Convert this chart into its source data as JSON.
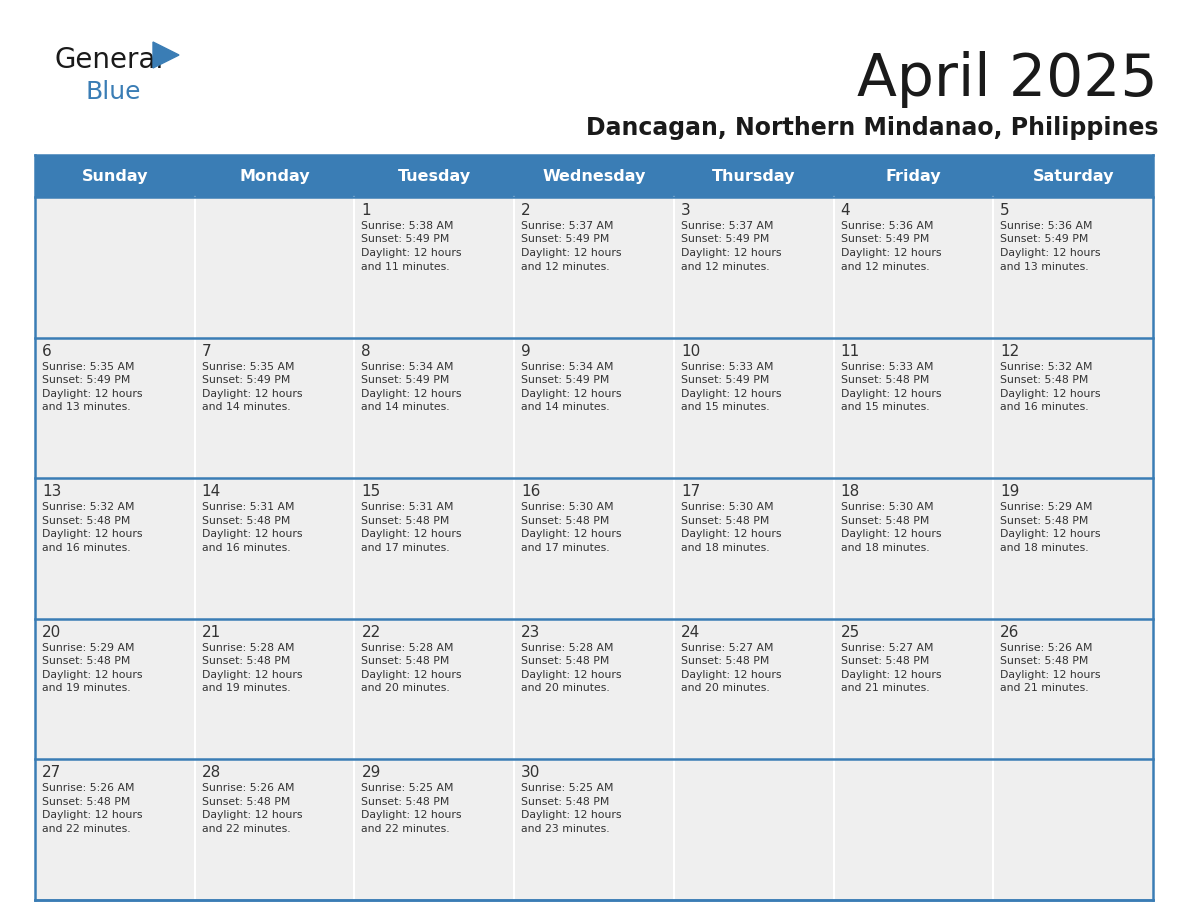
{
  "title": "April 2025",
  "subtitle": "Dancagan, Northern Mindanao, Philippines",
  "days_of_week": [
    "Sunday",
    "Monday",
    "Tuesday",
    "Wednesday",
    "Thursday",
    "Friday",
    "Saturday"
  ],
  "header_bg": "#3A7DB5",
  "header_text": "#FFFFFF",
  "cell_bg_light": "#EFEFEF",
  "cell_bg_white": "#FFFFFF",
  "text_color": "#333333",
  "line_color": "#3A7DB5",
  "logo_color": "#3A7DB5",
  "calendar": [
    [
      {
        "day": "",
        "sunrise": "",
        "sunset": "",
        "daylight": ""
      },
      {
        "day": "",
        "sunrise": "",
        "sunset": "",
        "daylight": ""
      },
      {
        "day": "1",
        "sunrise": "5:38 AM",
        "sunset": "5:49 PM",
        "daylight": "12 hours and 11 minutes."
      },
      {
        "day": "2",
        "sunrise": "5:37 AM",
        "sunset": "5:49 PM",
        "daylight": "12 hours and 12 minutes."
      },
      {
        "day": "3",
        "sunrise": "5:37 AM",
        "sunset": "5:49 PM",
        "daylight": "12 hours and 12 minutes."
      },
      {
        "day": "4",
        "sunrise": "5:36 AM",
        "sunset": "5:49 PM",
        "daylight": "12 hours and 12 minutes."
      },
      {
        "day": "5",
        "sunrise": "5:36 AM",
        "sunset": "5:49 PM",
        "daylight": "12 hours and 13 minutes."
      }
    ],
    [
      {
        "day": "6",
        "sunrise": "5:35 AM",
        "sunset": "5:49 PM",
        "daylight": "12 hours and 13 minutes."
      },
      {
        "day": "7",
        "sunrise": "5:35 AM",
        "sunset": "5:49 PM",
        "daylight": "12 hours and 14 minutes."
      },
      {
        "day": "8",
        "sunrise": "5:34 AM",
        "sunset": "5:49 PM",
        "daylight": "12 hours and 14 minutes."
      },
      {
        "day": "9",
        "sunrise": "5:34 AM",
        "sunset": "5:49 PM",
        "daylight": "12 hours and 14 minutes."
      },
      {
        "day": "10",
        "sunrise": "5:33 AM",
        "sunset": "5:49 PM",
        "daylight": "12 hours and 15 minutes."
      },
      {
        "day": "11",
        "sunrise": "5:33 AM",
        "sunset": "5:48 PM",
        "daylight": "12 hours and 15 minutes."
      },
      {
        "day": "12",
        "sunrise": "5:32 AM",
        "sunset": "5:48 PM",
        "daylight": "12 hours and 16 minutes."
      }
    ],
    [
      {
        "day": "13",
        "sunrise": "5:32 AM",
        "sunset": "5:48 PM",
        "daylight": "12 hours and 16 minutes."
      },
      {
        "day": "14",
        "sunrise": "5:31 AM",
        "sunset": "5:48 PM",
        "daylight": "12 hours and 16 minutes."
      },
      {
        "day": "15",
        "sunrise": "5:31 AM",
        "sunset": "5:48 PM",
        "daylight": "12 hours and 17 minutes."
      },
      {
        "day": "16",
        "sunrise": "5:30 AM",
        "sunset": "5:48 PM",
        "daylight": "12 hours and 17 minutes."
      },
      {
        "day": "17",
        "sunrise": "5:30 AM",
        "sunset": "5:48 PM",
        "daylight": "12 hours and 18 minutes."
      },
      {
        "day": "18",
        "sunrise": "5:30 AM",
        "sunset": "5:48 PM",
        "daylight": "12 hours and 18 minutes."
      },
      {
        "day": "19",
        "sunrise": "5:29 AM",
        "sunset": "5:48 PM",
        "daylight": "12 hours and 18 minutes."
      }
    ],
    [
      {
        "day": "20",
        "sunrise": "5:29 AM",
        "sunset": "5:48 PM",
        "daylight": "12 hours and 19 minutes."
      },
      {
        "day": "21",
        "sunrise": "5:28 AM",
        "sunset": "5:48 PM",
        "daylight": "12 hours and 19 minutes."
      },
      {
        "day": "22",
        "sunrise": "5:28 AM",
        "sunset": "5:48 PM",
        "daylight": "12 hours and 20 minutes."
      },
      {
        "day": "23",
        "sunrise": "5:28 AM",
        "sunset": "5:48 PM",
        "daylight": "12 hours and 20 minutes."
      },
      {
        "day": "24",
        "sunrise": "5:27 AM",
        "sunset": "5:48 PM",
        "daylight": "12 hours and 20 minutes."
      },
      {
        "day": "25",
        "sunrise": "5:27 AM",
        "sunset": "5:48 PM",
        "daylight": "12 hours and 21 minutes."
      },
      {
        "day": "26",
        "sunrise": "5:26 AM",
        "sunset": "5:48 PM",
        "daylight": "12 hours and 21 minutes."
      }
    ],
    [
      {
        "day": "27",
        "sunrise": "5:26 AM",
        "sunset": "5:48 PM",
        "daylight": "12 hours and 22 minutes."
      },
      {
        "day": "28",
        "sunrise": "5:26 AM",
        "sunset": "5:48 PM",
        "daylight": "12 hours and 22 minutes."
      },
      {
        "day": "29",
        "sunrise": "5:25 AM",
        "sunset": "5:48 PM",
        "daylight": "12 hours and 22 minutes."
      },
      {
        "day": "30",
        "sunrise": "5:25 AM",
        "sunset": "5:48 PM",
        "daylight": "12 hours and 23 minutes."
      },
      {
        "day": "",
        "sunrise": "",
        "sunset": "",
        "daylight": ""
      },
      {
        "day": "",
        "sunrise": "",
        "sunset": "",
        "daylight": ""
      },
      {
        "day": "",
        "sunrise": "",
        "sunset": "",
        "daylight": ""
      }
    ]
  ]
}
